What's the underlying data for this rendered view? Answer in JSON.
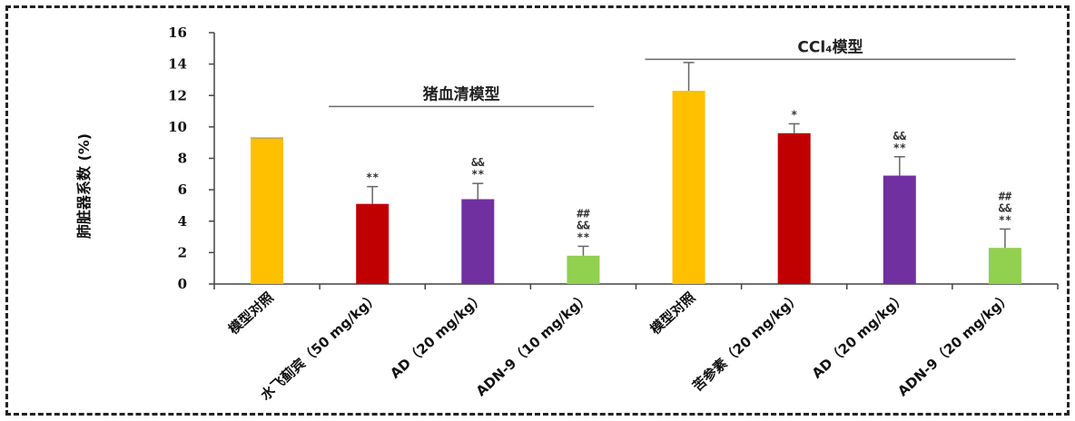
{
  "chart_data": {
    "type": "bar",
    "ylabel": "肺脏器系数 (%)",
    "ylim": [
      0,
      16
    ],
    "yticks": [
      0,
      2,
      4,
      6,
      8,
      10,
      12,
      14,
      16
    ],
    "grid": false,
    "categories": [
      "模型对照",
      "水飞蓟宾（50 mg/kg）",
      "AD（20 mg/kg）",
      "ADN-9（10 mg/kg）",
      "模型对照",
      "苦参素（20 mg/kg）",
      "AD（20 mg/kg）",
      "ADN-9（20 mg/kg）"
    ],
    "values": [
      9.3,
      5.1,
      5.4,
      1.8,
      12.3,
      9.6,
      6.9,
      2.3
    ],
    "errors": [
      0,
      1.1,
      1.0,
      0.6,
      1.8,
      0.6,
      1.2,
      1.2
    ],
    "colors": [
      "#FFC000",
      "#C00000",
      "#7030A0",
      "#92D050",
      "#FFC000",
      "#C00000",
      "#7030A0",
      "#92D050"
    ],
    "significance": [
      [],
      [
        "**"
      ],
      [
        "&&",
        "**"
      ],
      [
        "##",
        "&&",
        "**"
      ],
      [],
      [
        "*"
      ],
      [
        "&&",
        "**"
      ],
      [
        "##",
        "&&",
        "**"
      ]
    ],
    "groups": [
      {
        "label": "猪血清模型",
        "from": 1,
        "to": 3,
        "y": 11.3
      },
      {
        "label": "CCl₄模型",
        "from": 4,
        "to": 7,
        "y": 14.3
      }
    ]
  }
}
